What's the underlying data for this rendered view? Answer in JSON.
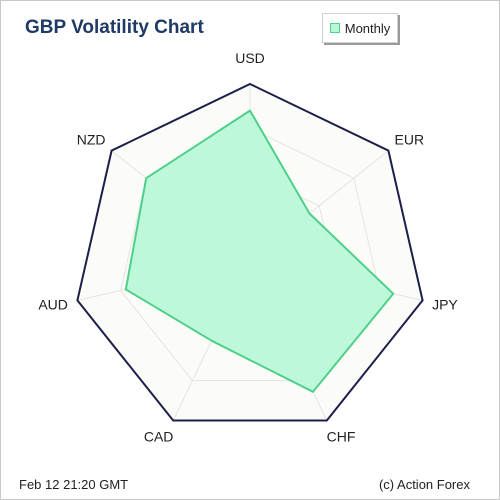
{
  "chart_data": {
    "type": "radar",
    "title": "GBP Volatility Chart",
    "axes": [
      "USD",
      "EUR",
      "JPY",
      "CHF",
      "CAD",
      "AUD",
      "NZD"
    ],
    "series": [
      {
        "name": "Monthly",
        "values": [
          0.85,
          0.43,
          0.83,
          0.82,
          0.5,
          0.72,
          0.75
        ]
      }
    ],
    "rlim": [
      0,
      1
    ],
    "grid_levels": 4,
    "legend_position": "top-right",
    "colors": {
      "series_fill": "#b8f7d8",
      "series_line": "#4fcf8a",
      "grid": "#e4e4e4",
      "outer_frame": "#1c1f4a",
      "title": "#1f3a66"
    }
  },
  "footer": {
    "date": "Feb 12  21:20 GMT",
    "credit": "(c) Action Forex"
  }
}
